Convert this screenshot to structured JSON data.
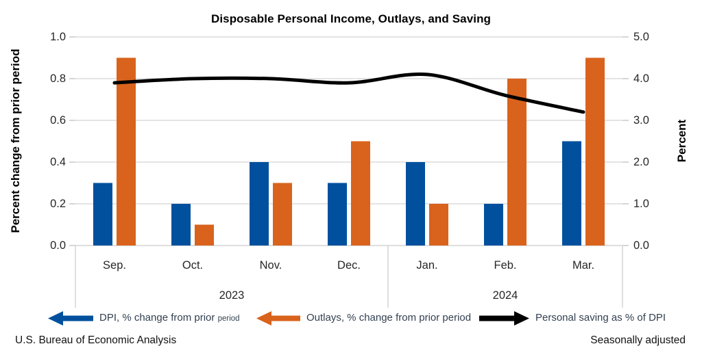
{
  "chart_data": {
    "type": "bar",
    "subtype": "combo-bar-line-dual-axis",
    "title": "Disposable Personal Income, Outlays, and Saving",
    "categories": [
      "Sep.",
      "Oct.",
      "Nov.",
      "Dec.",
      "Jan.",
      "Feb.",
      "Mar."
    ],
    "year_groups": [
      {
        "label": "2023",
        "start": 0,
        "end": 3
      },
      {
        "label": "2024",
        "start": 4,
        "end": 6
      }
    ],
    "series": [
      {
        "name": "DPI, % change from prior period",
        "type": "bar",
        "axis": "left",
        "color": "#00509E",
        "values": [
          0.3,
          0.2,
          0.4,
          0.3,
          0.4,
          0.2,
          0.5
        ]
      },
      {
        "name": "Outlays, % change from prior period",
        "type": "bar",
        "axis": "left",
        "color": "#D9631C",
        "values": [
          0.9,
          0.1,
          0.3,
          0.5,
          0.2,
          0.8,
          0.9
        ]
      },
      {
        "name": "Personal saving as % of DPI",
        "type": "line",
        "axis": "right",
        "color": "#000000",
        "values": [
          3.9,
          4.0,
          4.0,
          3.9,
          4.1,
          3.6,
          3.2
        ]
      }
    ],
    "left_axis": {
      "title": "Percent change from prior period",
      "min": 0.0,
      "max": 1.0,
      "tick_labels": [
        "0.0",
        "0.2",
        "0.4",
        "0.6",
        "0.8",
        "1.0"
      ]
    },
    "right_axis": {
      "title": "Percent",
      "min": 0.0,
      "max": 5.0,
      "tick_labels": [
        "0.0",
        "1.0",
        "2.0",
        "3.0",
        "4.0",
        "5.0"
      ]
    },
    "grid": true,
    "gridline_color": "#DCDCDC",
    "legend_position": "bottom"
  },
  "legend": {
    "dpi": {
      "text_main": "DPI, % change from prior",
      "text_small": "period"
    },
    "outlays": {
      "text": "Outlays, % change from prior period"
    },
    "saving": {
      "text": "Personal saving as % of DPI"
    }
  },
  "footer": {
    "left": "U.S. Bureau of Economic Analysis",
    "right": "Seasonally adjusted"
  }
}
